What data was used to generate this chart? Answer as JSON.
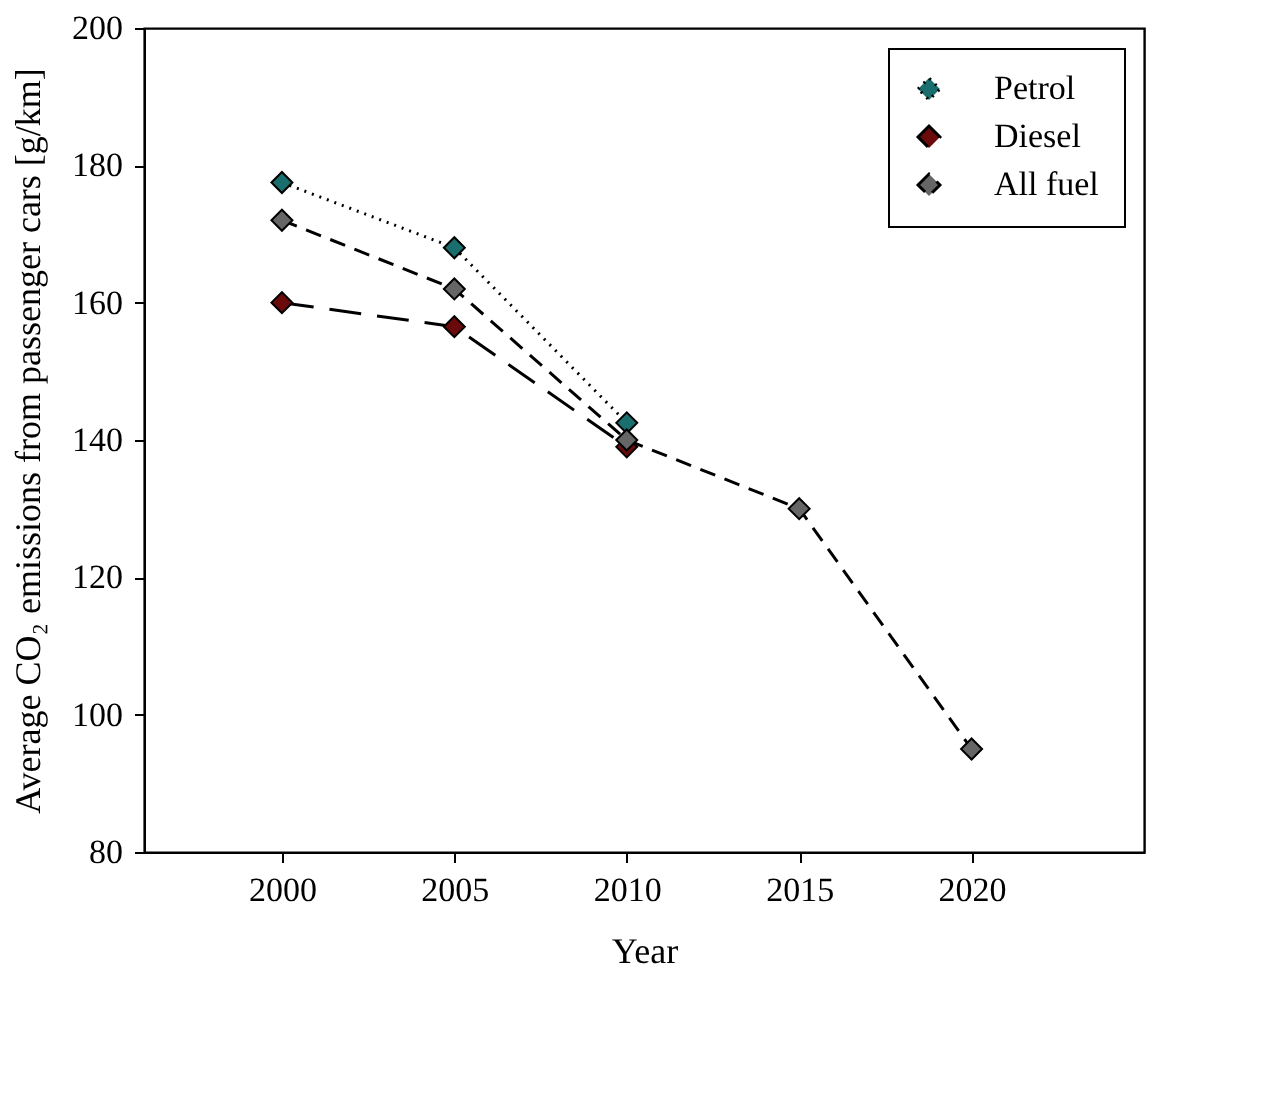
{
  "chart_data": {
    "type": "line",
    "xlabel": "Year",
    "ylabel": "Average CO₂ emissions from passenger cars [g/km]",
    "xlim": [
      1996,
      2025
    ],
    "xticks": [
      2000,
      2005,
      2010,
      2015,
      2020
    ],
    "ylim": [
      80,
      200
    ],
    "yticks": [
      80,
      100,
      120,
      140,
      160,
      180,
      200
    ],
    "grid": false,
    "legend": "top right",
    "marker": "diamond",
    "series": [
      {
        "name": "Petrol",
        "color": "#1a6e6e",
        "line_style": "dotted",
        "x": [
          2000,
          2005,
          2010
        ],
        "values": [
          177.5,
          168,
          142.5
        ]
      },
      {
        "name": "Diesel",
        "color": "#6b0a0a",
        "line_style": "long dashed",
        "x": [
          2000,
          2005,
          2010
        ],
        "values": [
          160,
          156.5,
          139
        ]
      },
      {
        "name": "All fuel",
        "color": "#666666",
        "line_style": "dashed",
        "x": [
          2000,
          2005,
          2010,
          2015,
          2020
        ],
        "values": [
          172,
          162,
          140,
          130,
          95
        ]
      }
    ]
  }
}
